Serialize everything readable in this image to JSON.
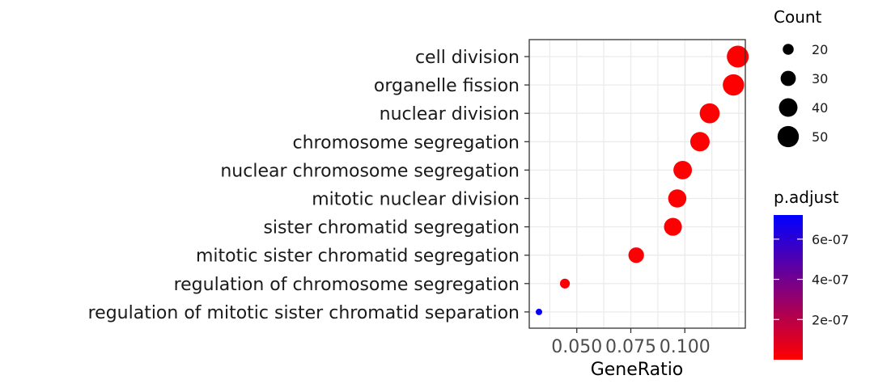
{
  "chart_data": {
    "type": "scatter",
    "xlabel": "GeneRatio",
    "ylabel": "",
    "xlim": [
      0.028,
      0.128
    ],
    "x_ticks": [
      0.05,
      0.075,
      0.1
    ],
    "x_tick_labels": [
      "0.050",
      "0.075",
      "0.100"
    ],
    "grid": true,
    "points": [
      {
        "term": "cell division",
        "gene_ratio": 0.1245,
        "count": 52,
        "p_adjust": 2e-09
      },
      {
        "term": "organelle fission",
        "gene_ratio": 0.1225,
        "count": 50,
        "p_adjust": 2e-09
      },
      {
        "term": "nuclear division",
        "gene_ratio": 0.1115,
        "count": 45,
        "p_adjust": 3e-09
      },
      {
        "term": "chromosome segregation",
        "gene_ratio": 0.107,
        "count": 43,
        "p_adjust": 3e-09
      },
      {
        "term": "nuclear chromosome segregation",
        "gene_ratio": 0.099,
        "count": 40,
        "p_adjust": 4e-09
      },
      {
        "term": "mitotic nuclear division",
        "gene_ratio": 0.0965,
        "count": 39,
        "p_adjust": 4e-09
      },
      {
        "term": "sister chromatid segregation",
        "gene_ratio": 0.0945,
        "count": 38,
        "p_adjust": 5e-09
      },
      {
        "term": "mitotic sister chromatid segregation",
        "gene_ratio": 0.0775,
        "count": 31,
        "p_adjust": 1e-08
      },
      {
        "term": "regulation of chromosome segregation",
        "gene_ratio": 0.0445,
        "count": 18,
        "p_adjust": 1.5e-08
      },
      {
        "term": "regulation of mitotic sister chromatid separation",
        "gene_ratio": 0.0325,
        "count": 13,
        "p_adjust": 7e-07
      }
    ],
    "size_legend": {
      "title": "Count",
      "values": [
        20,
        30,
        40,
        50
      ],
      "labels": [
        "20",
        "30",
        "40",
        "50"
      ]
    },
    "color_legend": {
      "title": "p.adjust",
      "range": [
        0,
        7.2e-07
      ],
      "ticks": [
        2e-07,
        4e-07,
        6e-07
      ],
      "tick_labels": [
        "2e-07",
        "4e-07",
        "6e-07"
      ],
      "low_color": "#ff0000",
      "high_color": "#0000ff"
    }
  }
}
